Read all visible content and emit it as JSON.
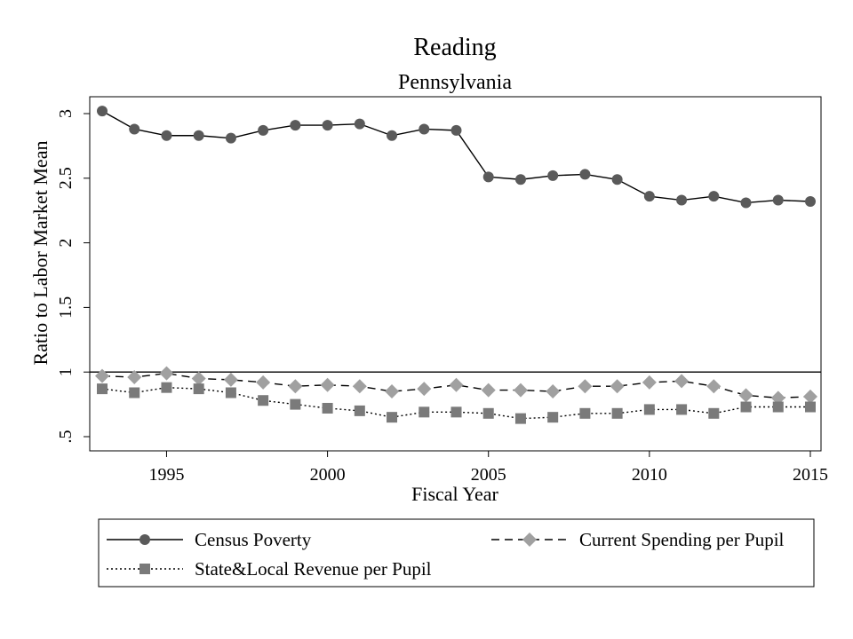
{
  "chart_data": {
    "type": "line",
    "title": "Reading",
    "subtitle": "Pennsylvania",
    "xlabel": "Fiscal Year",
    "ylabel": "Ratio to Labor Market Mean",
    "xlim": [
      1993,
      2015
    ],
    "ylim": [
      0.4,
      3.1
    ],
    "x_ticks": [
      1995,
      2000,
      2005,
      2010,
      2015
    ],
    "x_tick_labels": [
      "1995",
      "2000",
      "2005",
      "2010",
      "2015"
    ],
    "y_ticks": [
      0.5,
      1,
      1.5,
      2,
      2.5,
      3
    ],
    "y_tick_labels": [
      ".5",
      "1",
      "1.5",
      "2",
      "2.5",
      "3"
    ],
    "reference_line": 1,
    "grid": false,
    "legend_position": "bottom",
    "x": [
      1993,
      1994,
      1995,
      1996,
      1997,
      1998,
      1999,
      2000,
      2001,
      2002,
      2003,
      2004,
      2005,
      2006,
      2007,
      2008,
      2009,
      2010,
      2011,
      2012,
      2013,
      2014,
      2015
    ],
    "series": [
      {
        "name": "Census Poverty",
        "marker": "circle",
        "line": "solid",
        "color": "#5a5a5a",
        "values": [
          3.02,
          2.88,
          2.83,
          2.83,
          2.81,
          2.87,
          2.91,
          2.91,
          2.92,
          2.83,
          2.88,
          2.87,
          2.51,
          2.49,
          2.52,
          2.53,
          2.49,
          2.36,
          2.33,
          2.36,
          2.31,
          2.33,
          2.32
        ]
      },
      {
        "name": "Current Spending per Pupil",
        "marker": "diamond",
        "line": "dashed",
        "color": "#a0a0a0",
        "values": [
          0.97,
          0.96,
          0.99,
          0.95,
          0.94,
          0.92,
          0.89,
          0.9,
          0.89,
          0.85,
          0.87,
          0.9,
          0.86,
          0.86,
          0.85,
          0.89,
          0.89,
          0.92,
          0.93,
          0.89,
          0.82,
          0.8,
          0.81
        ]
      },
      {
        "name": "State&Local Revenue per Pupil",
        "marker": "square",
        "line": "dotted",
        "color": "#7a7a7a",
        "values": [
          0.87,
          0.84,
          0.88,
          0.87,
          0.84,
          0.78,
          0.75,
          0.72,
          0.7,
          0.65,
          0.69,
          0.69,
          0.68,
          0.64,
          0.65,
          0.68,
          0.68,
          0.71,
          0.71,
          0.68,
          0.73,
          0.73,
          0.73
        ]
      }
    ]
  }
}
